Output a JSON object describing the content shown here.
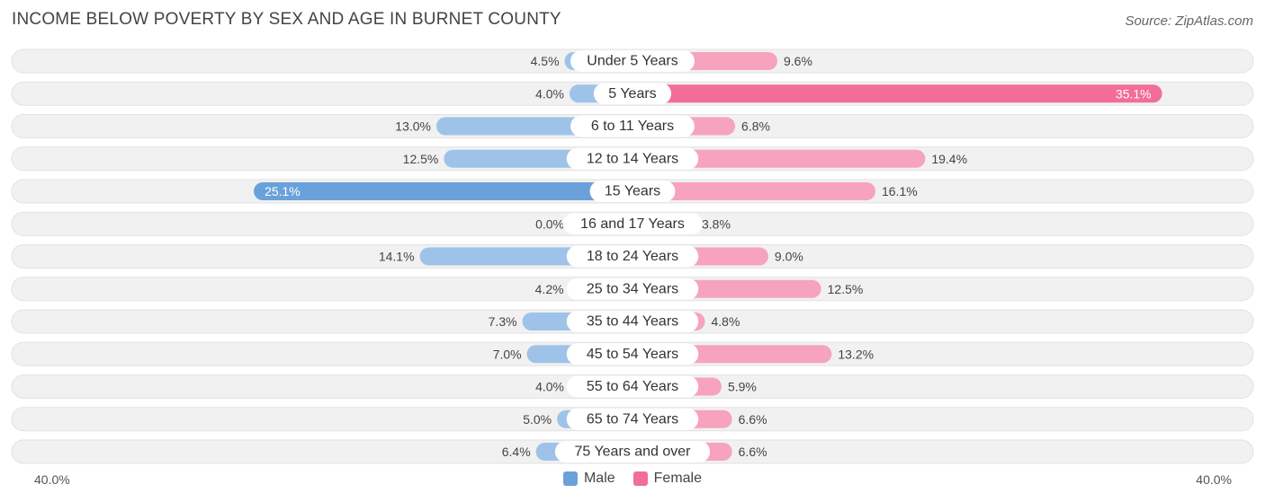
{
  "title": "INCOME BELOW POVERTY BY SEX AND AGE IN BURNET COUNTY",
  "source": "Source: ZipAtlas.com",
  "colors": {
    "male": "#9fc3e8",
    "male_strong": "#6aa1da",
    "female": "#f7a3bd",
    "female_strong": "#f26d97",
    "row_bg": "#f1f1f1"
  },
  "chart_data": {
    "type": "bar",
    "orientation": "horizontal-diverging",
    "categories": [
      "Under 5 Years",
      "5 Years",
      "6 to 11 Years",
      "12 to 14 Years",
      "15 Years",
      "16 and 17 Years",
      "18 to 24 Years",
      "25 to 34 Years",
      "35 to 44 Years",
      "45 to 54 Years",
      "55 to 64 Years",
      "65 to 74 Years",
      "75 Years and over"
    ],
    "series": [
      {
        "name": "Male",
        "values": [
          4.5,
          4.0,
          13.0,
          12.5,
          25.1,
          0.0,
          14.1,
          4.2,
          7.3,
          7.0,
          4.0,
          5.0,
          6.4
        ]
      },
      {
        "name": "Female",
        "values": [
          9.6,
          35.1,
          6.8,
          19.4,
          16.1,
          3.8,
          9.0,
          12.5,
          4.8,
          13.2,
          5.9,
          6.6,
          6.6
        ]
      }
    ],
    "value_labels": {
      "male": [
        "4.5%",
        "4.0%",
        "13.0%",
        "12.5%",
        "25.1%",
        "0.0%",
        "14.1%",
        "4.2%",
        "7.3%",
        "7.0%",
        "4.0%",
        "5.0%",
        "6.4%"
      ],
      "female": [
        "9.6%",
        "35.1%",
        "6.8%",
        "19.4%",
        "16.1%",
        "3.8%",
        "9.0%",
        "12.5%",
        "4.8%",
        "13.2%",
        "5.9%",
        "6.6%",
        "6.6%"
      ]
    },
    "xlim": [
      -40,
      40
    ],
    "axis_left_label": "40.0%",
    "axis_right_label": "40.0%",
    "legend_position": "bottom-center",
    "grid": false
  },
  "legend": {
    "male_label": "Male",
    "female_label": "Female"
  }
}
